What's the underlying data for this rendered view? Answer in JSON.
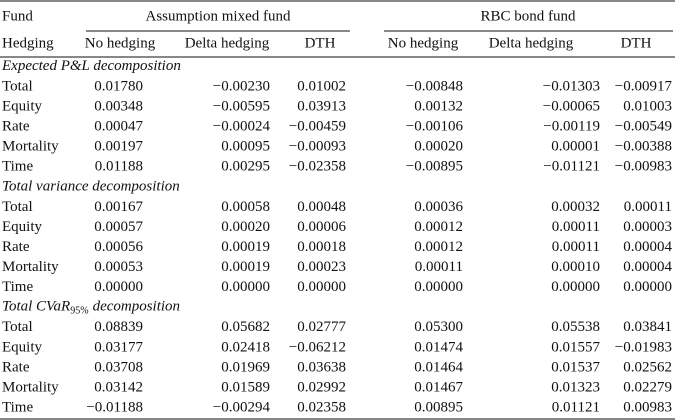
{
  "header": {
    "fund_label": "Fund",
    "hedging_label": "Hedging",
    "groups": [
      {
        "name": "Assumption mixed fund",
        "columns": [
          "No hedging",
          "Delta hedging",
          "DTH"
        ]
      },
      {
        "name": "RBC bond fund",
        "columns": [
          "No hedging",
          "Delta hedging",
          "DTH"
        ]
      }
    ]
  },
  "sections": [
    {
      "title": "Expected P&L decomposition",
      "rows": [
        {
          "label": "Total",
          "values": [
            "0.01780",
            "−0.00230",
            "0.01002",
            "−0.00848",
            "−0.01303",
            "−0.00917"
          ]
        },
        {
          "label": "Equity",
          "values": [
            "0.00348",
            "−0.00595",
            "0.03913",
            "0.00132",
            "−0.00065",
            "0.01003"
          ]
        },
        {
          "label": "Rate",
          "values": [
            "0.00047",
            "−0.00024",
            "−0.00459",
            "−0.00106",
            "−0.00119",
            "−0.00549"
          ]
        },
        {
          "label": "Mortality",
          "values": [
            "0.00197",
            "0.00095",
            "−0.00093",
            "0.00020",
            "0.00001",
            "−0.00388"
          ]
        },
        {
          "label": "Time",
          "values": [
            "0.01188",
            "0.00295",
            "−0.02358",
            "−0.00895",
            "−0.01121",
            "−0.00983"
          ]
        }
      ]
    },
    {
      "title": "Total variance decomposition",
      "rows": [
        {
          "label": "Total",
          "values": [
            "0.00167",
            "0.00058",
            "0.00048",
            "0.00036",
            "0.00032",
            "0.00011"
          ]
        },
        {
          "label": "Equity",
          "values": [
            "0.00057",
            "0.00020",
            "0.00006",
            "0.00012",
            "0.00011",
            "0.00003"
          ]
        },
        {
          "label": "Rate",
          "values": [
            "0.00056",
            "0.00019",
            "0.00018",
            "0.00012",
            "0.00011",
            "0.00004"
          ]
        },
        {
          "label": "Mortality",
          "values": [
            "0.00053",
            "0.00019",
            "0.00023",
            "0.00011",
            "0.00010",
            "0.00004"
          ]
        },
        {
          "label": "Time",
          "values": [
            "0.00000",
            "0.00000",
            "0.00000",
            "0.00000",
            "0.00000",
            "0.00000"
          ]
        }
      ]
    },
    {
      "title": "Total CVaR",
      "subscript": "95%",
      "title_end": "decomposition",
      "rows": [
        {
          "label": "Total",
          "values": [
            "0.08839",
            "0.05682",
            "0.02777",
            "0.05300",
            "0.05538",
            "0.03841"
          ]
        },
        {
          "label": "Equity",
          "values": [
            "0.03177",
            "0.02418",
            "−0.06212",
            "0.01474",
            "0.01557",
            "−0.01983"
          ]
        },
        {
          "label": "Rate",
          "values": [
            "0.03708",
            "0.01969",
            "0.03638",
            "0.01464",
            "0.01537",
            "0.02562"
          ]
        },
        {
          "label": "Mortality",
          "values": [
            "0.03142",
            "0.01589",
            "0.02992",
            "0.01467",
            "0.01323",
            "0.02279"
          ]
        },
        {
          "label": "Time",
          "values": [
            "−0.01188",
            "−0.00294",
            "0.02358",
            "0.00895",
            "0.01121",
            "0.00983"
          ]
        }
      ]
    }
  ]
}
